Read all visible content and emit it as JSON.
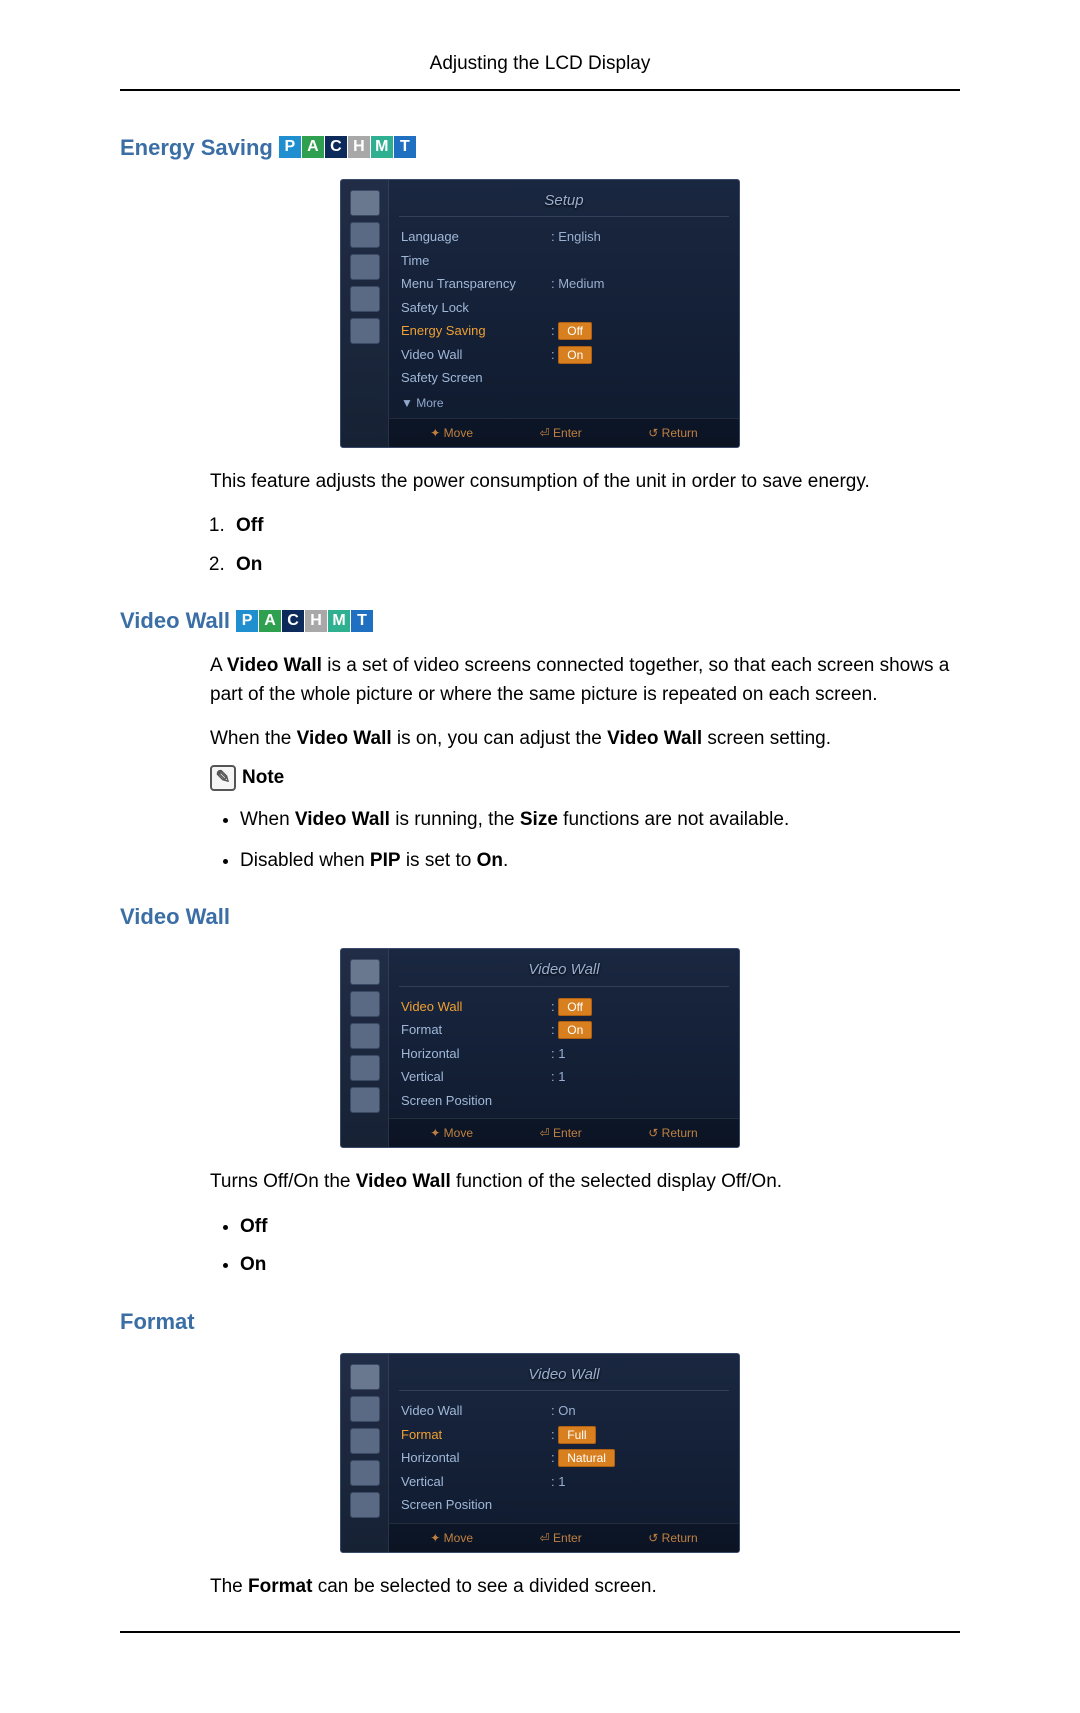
{
  "page": {
    "header": "Adjusting the LCD Display"
  },
  "badges": {
    "items": [
      {
        "letter": "P",
        "bg": "#1f8fcf"
      },
      {
        "letter": "A",
        "bg": "#2fa04f"
      },
      {
        "letter": "C",
        "bg": "#0c2a5a"
      },
      {
        "letter": "H",
        "bg": "#a8a8a8"
      },
      {
        "letter": "M",
        "bg": "#2fb090"
      },
      {
        "letter": "T",
        "bg": "#1f70c0"
      }
    ]
  },
  "section1": {
    "heading": "Energy Saving",
    "osd": {
      "title": "Setup",
      "rows": [
        {
          "label": "Language",
          "value": ": English",
          "highlight": false,
          "pill": null
        },
        {
          "label": "Time",
          "value": "",
          "highlight": false,
          "pill": null
        },
        {
          "label": "Menu Transparency",
          "value": ": Medium",
          "highlight": false,
          "pill": null
        },
        {
          "label": "Safety Lock",
          "value": "",
          "highlight": false,
          "pill": null
        },
        {
          "label": "Energy Saving",
          "value": ":",
          "highlight": true,
          "pill": "Off"
        },
        {
          "label": "Video Wall",
          "value": ":",
          "highlight": false,
          "pill": "On"
        },
        {
          "label": "Safety Screen",
          "value": "",
          "highlight": false,
          "pill": null
        }
      ],
      "more": "▼ More",
      "footer": {
        "move": "✦ Move",
        "enter": "⏎ Enter",
        "ret": "↺ Return"
      },
      "bg_colors": {
        "panel": "#15223a",
        "title_color": "#9aaed0"
      }
    },
    "desc": "This feature adjusts the power consumption of the unit in order to save energy.",
    "options": [
      "Off",
      "On"
    ]
  },
  "section2": {
    "heading": "Video Wall",
    "para1a": "A ",
    "para1b": "Video Wall",
    "para1c": " is a set of video screens connected together, so that each screen shows a part of the whole picture or where the same picture is repeated on each screen.",
    "para2a": "When the ",
    "para2b": "Video Wall",
    "para2c": " is on, you can adjust the ",
    "para2d": "Video Wall",
    "para2e": " screen setting.",
    "note_label": "Note",
    "bullets": [
      {
        "pre": "When ",
        "b1": "Video Wall",
        "mid": " is running, the ",
        "b2": "Size",
        "post": " functions are not available."
      },
      {
        "pre": "Disabled when ",
        "b1": "PIP",
        "mid": " is set to ",
        "b2": "On",
        "post": "."
      }
    ]
  },
  "section3": {
    "heading": "Video Wall",
    "osd": {
      "title": "Video Wall",
      "rows": [
        {
          "label": "Video Wall",
          "value": ":",
          "highlight": true,
          "pill": "Off"
        },
        {
          "label": "Format",
          "value": ":",
          "highlight": false,
          "pill": "On"
        },
        {
          "label": "Horizontal",
          "value": ": 1",
          "highlight": false,
          "pill": null
        },
        {
          "label": "Vertical",
          "value": ": 1",
          "highlight": false,
          "pill": null
        },
        {
          "label": "Screen Position",
          "value": "",
          "highlight": false,
          "pill": null
        }
      ],
      "more": "",
      "footer": {
        "move": "✦ Move",
        "enter": "⏎ Enter",
        "ret": "↺ Return"
      }
    },
    "desc_a": "Turns Off/On the ",
    "desc_b": "Video Wall",
    "desc_c": " function of the selected display Off/On.",
    "options": [
      "Off",
      "On"
    ]
  },
  "section4": {
    "heading": "Format",
    "osd": {
      "title": "Video Wall",
      "rows": [
        {
          "label": "Video Wall",
          "value": ": On",
          "highlight": false,
          "pill": null
        },
        {
          "label": "Format",
          "value": ":",
          "highlight": true,
          "pill": "Full"
        },
        {
          "label": "Horizontal",
          "value": ":",
          "highlight": false,
          "pill": "Natural"
        },
        {
          "label": "Vertical",
          "value": ": 1",
          "highlight": false,
          "pill": null
        },
        {
          "label": "Screen Position",
          "value": "",
          "highlight": false,
          "pill": null
        }
      ],
      "more": "",
      "footer": {
        "move": "✦ Move",
        "enter": "⏎ Enter",
        "ret": "↺ Return"
      }
    },
    "desc_a": "The ",
    "desc_b": "Format",
    "desc_c": " can be selected to see a divided screen."
  }
}
